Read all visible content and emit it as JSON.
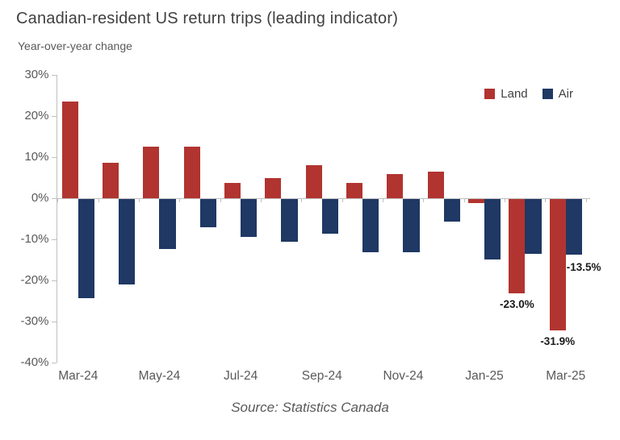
{
  "title": "Canadian-resident US return trips (leading indicator)",
  "subtitle": "Year-over-year change",
  "source": "Source: Statistics Canada",
  "colors": {
    "land": "#B13430",
    "air": "#1F3864",
    "axis_line": "#BFBFBF",
    "title_text": "#404040",
    "muted_text": "#595959",
    "annotation_text": "#1A1A1A"
  },
  "chart_data": {
    "type": "bar",
    "title": "Canadian-resident US return trips (leading indicator)",
    "subtitle": "Year-over-year change",
    "categories": [
      "Mar-24",
      "Apr-24",
      "May-24",
      "Jun-24",
      "Jul-24",
      "Aug-24",
      "Sep-24",
      "Oct-24",
      "Nov-24",
      "Dec-24",
      "Jan-25",
      "Feb-25",
      "Mar-25"
    ],
    "series": [
      {
        "name": "Land",
        "color": "#B13430",
        "values": [
          23.5,
          8.7,
          12.5,
          12.5,
          3.7,
          5.0,
          8.0,
          3.8,
          5.8,
          6.5,
          -1.0,
          -23.0,
          -31.9
        ]
      },
      {
        "name": "Air",
        "color": "#1F3864",
        "values": [
          -24.2,
          -20.8,
          -12.1,
          -6.8,
          -9.3,
          -10.4,
          -8.4,
          -13.0,
          -13.0,
          -5.4,
          -14.8,
          -13.3,
          -13.5
        ]
      }
    ],
    "ylim": [
      -40,
      30
    ],
    "ytick_step": 10,
    "ytick_suffix": "%",
    "ytick_labels": [
      "30%",
      "20%",
      "10%",
      "0%",
      "-10%",
      "-20%",
      "-30%",
      "-40%"
    ],
    "xtick_labels": [
      "Mar-24",
      "May-24",
      "Jul-24",
      "Sep-24",
      "Nov-24",
      "Jan-25",
      "Mar-25"
    ],
    "xtick_every": 2,
    "grid": "off",
    "legend_position": "top-right",
    "annotations": [
      {
        "series": "Land",
        "category": "Feb-25",
        "text": "-23.0%",
        "placement": "below"
      },
      {
        "series": "Land",
        "category": "Mar-25",
        "text": "-31.9%",
        "placement": "below"
      },
      {
        "series": "Air",
        "category": "Mar-25",
        "text": "-13.5%",
        "placement": "below-right"
      }
    ]
  }
}
